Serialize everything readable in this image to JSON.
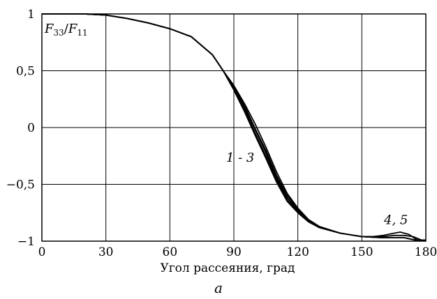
{
  "chart_data": {
    "type": "line",
    "ylabel_html": "F33/F11",
    "ylabel_parts": {
      "f1": "F",
      "s1": "33",
      "sep": "/",
      "f2": "F",
      "s2": "11"
    },
    "xlabel": "Угол рассеяния, град",
    "panel_label": "a",
    "xlim": [
      0,
      180
    ],
    "ylim": [
      -1,
      1
    ],
    "x_ticks": [
      0,
      30,
      60,
      90,
      120,
      150,
      180
    ],
    "x_tick_labels": [
      "0",
      "30",
      "60",
      "90",
      "120",
      "150",
      "180"
    ],
    "y_ticks": [
      1,
      0.5,
      0,
      -0.5,
      -1
    ],
    "y_tick_labels": [
      "1",
      "0,5",
      "0",
      "−0,5",
      "−1"
    ],
    "grid": true,
    "annotations": [
      {
        "text": "1 - 3",
        "x": 93,
        "y": -0.3
      },
      {
        "text": "4, 5",
        "x": 166,
        "y": -0.85
      }
    ],
    "series": [
      {
        "x": [
          0,
          20,
          30,
          40,
          50,
          60,
          70,
          80,
          85,
          90,
          95,
          100,
          105,
          110,
          115,
          120,
          125,
          130,
          140,
          150,
          160,
          165,
          170,
          175,
          180
        ],
        "values": [
          1,
          1,
          0.99,
          0.96,
          0.92,
          0.87,
          0.8,
          0.64,
          0.5,
          0.33,
          0.14,
          -0.07,
          -0.27,
          -0.48,
          -0.65,
          -0.75,
          -0.83,
          -0.88,
          -0.93,
          -0.96,
          -0.97,
          -0.97,
          -0.97,
          -0.99,
          -0.99
        ]
      },
      {
        "x": [
          0,
          20,
          30,
          40,
          50,
          60,
          70,
          80,
          85,
          90,
          95,
          100,
          105,
          110,
          115,
          120,
          125,
          130,
          140,
          150,
          160,
          165,
          170,
          175,
          180
        ],
        "values": [
          1,
          1,
          0.99,
          0.96,
          0.92,
          0.87,
          0.8,
          0.64,
          0.5,
          0.35,
          0.18,
          -0.02,
          -0.22,
          -0.44,
          -0.62,
          -0.73,
          -0.82,
          -0.88,
          -0.93,
          -0.96,
          -0.97,
          -0.97,
          -0.97,
          -0.99,
          -0.99
        ]
      },
      {
        "x": [
          0,
          20,
          30,
          40,
          50,
          60,
          70,
          80,
          85,
          90,
          95,
          100,
          105,
          110,
          115,
          120,
          125,
          130,
          140,
          150,
          160,
          165,
          170,
          175,
          180
        ],
        "values": [
          1,
          1,
          0.99,
          0.96,
          0.92,
          0.87,
          0.8,
          0.64,
          0.5,
          0.37,
          0.21,
          0.03,
          -0.17,
          -0.39,
          -0.58,
          -0.71,
          -0.81,
          -0.87,
          -0.93,
          -0.96,
          -0.97,
          -0.97,
          -0.97,
          -0.99,
          -0.99
        ]
      },
      {
        "x": [
          0,
          20,
          30,
          40,
          50,
          60,
          70,
          80,
          85,
          90,
          95,
          100,
          105,
          110,
          115,
          120,
          125,
          130,
          140,
          150,
          155,
          160,
          165,
          168,
          172,
          176,
          180
        ],
        "values": [
          1,
          1,
          0.99,
          0.96,
          0.92,
          0.87,
          0.8,
          0.64,
          0.5,
          0.34,
          0.16,
          -0.05,
          -0.25,
          -0.46,
          -0.64,
          -0.74,
          -0.82,
          -0.88,
          -0.93,
          -0.96,
          -0.96,
          -0.95,
          -0.93,
          -0.92,
          -0.94,
          -0.99,
          -0.99
        ]
      },
      {
        "x": [
          0,
          20,
          30,
          40,
          50,
          60,
          70,
          80,
          85,
          90,
          95,
          100,
          105,
          110,
          115,
          120,
          125,
          130,
          140,
          150,
          155,
          160,
          165,
          170,
          174,
          178,
          180
        ],
        "values": [
          1,
          1,
          0.99,
          0.96,
          0.92,
          0.87,
          0.8,
          0.64,
          0.5,
          0.36,
          0.19,
          -0.01,
          -0.2,
          -0.42,
          -0.6,
          -0.72,
          -0.82,
          -0.88,
          -0.93,
          -0.96,
          -0.96,
          -0.96,
          -0.95,
          -0.95,
          -0.96,
          -0.99,
          -0.99
        ]
      }
    ]
  }
}
